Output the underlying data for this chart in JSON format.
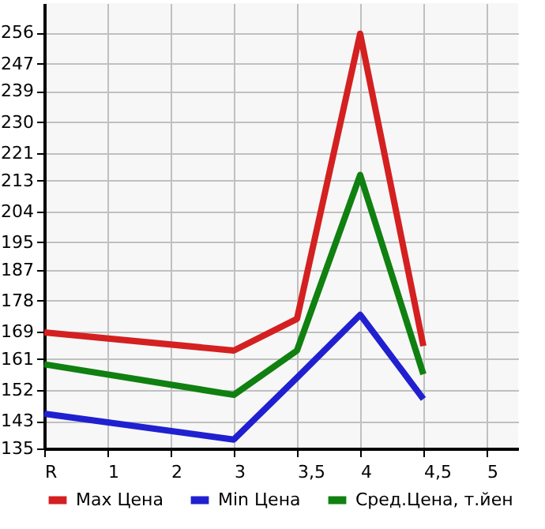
{
  "chart_data": {
    "type": "line",
    "categories": [
      "R",
      "1",
      "2",
      "3",
      "3,5",
      "4",
      "4,5",
      "5"
    ],
    "series": [
      {
        "name": "Max Цена",
        "color": "#d42020",
        "values": [
          168.8,
          null,
          null,
          163.5,
          172.7,
          255.7,
          164.8,
          null
        ]
      },
      {
        "name": "Min Цена",
        "color": "#2020d0",
        "values": [
          145.1,
          null,
          null,
          137.6,
          155.6,
          173.9,
          149.4,
          null
        ]
      },
      {
        "name": "Сред.Цена, т.йен",
        "color": "#108010",
        "values": [
          159.5,
          null,
          null,
          150.6,
          163.5,
          214.6,
          156.6,
          null
        ]
      }
    ],
    "ylim": [
      135,
      264.6
    ],
    "yticks": [
      135,
      143,
      152,
      161,
      169,
      178,
      187,
      195,
      204,
      213,
      221,
      230,
      239,
      247,
      256
    ],
    "grid": true,
    "legend": "bottom",
    "marker": "none",
    "line_style": "solid"
  }
}
